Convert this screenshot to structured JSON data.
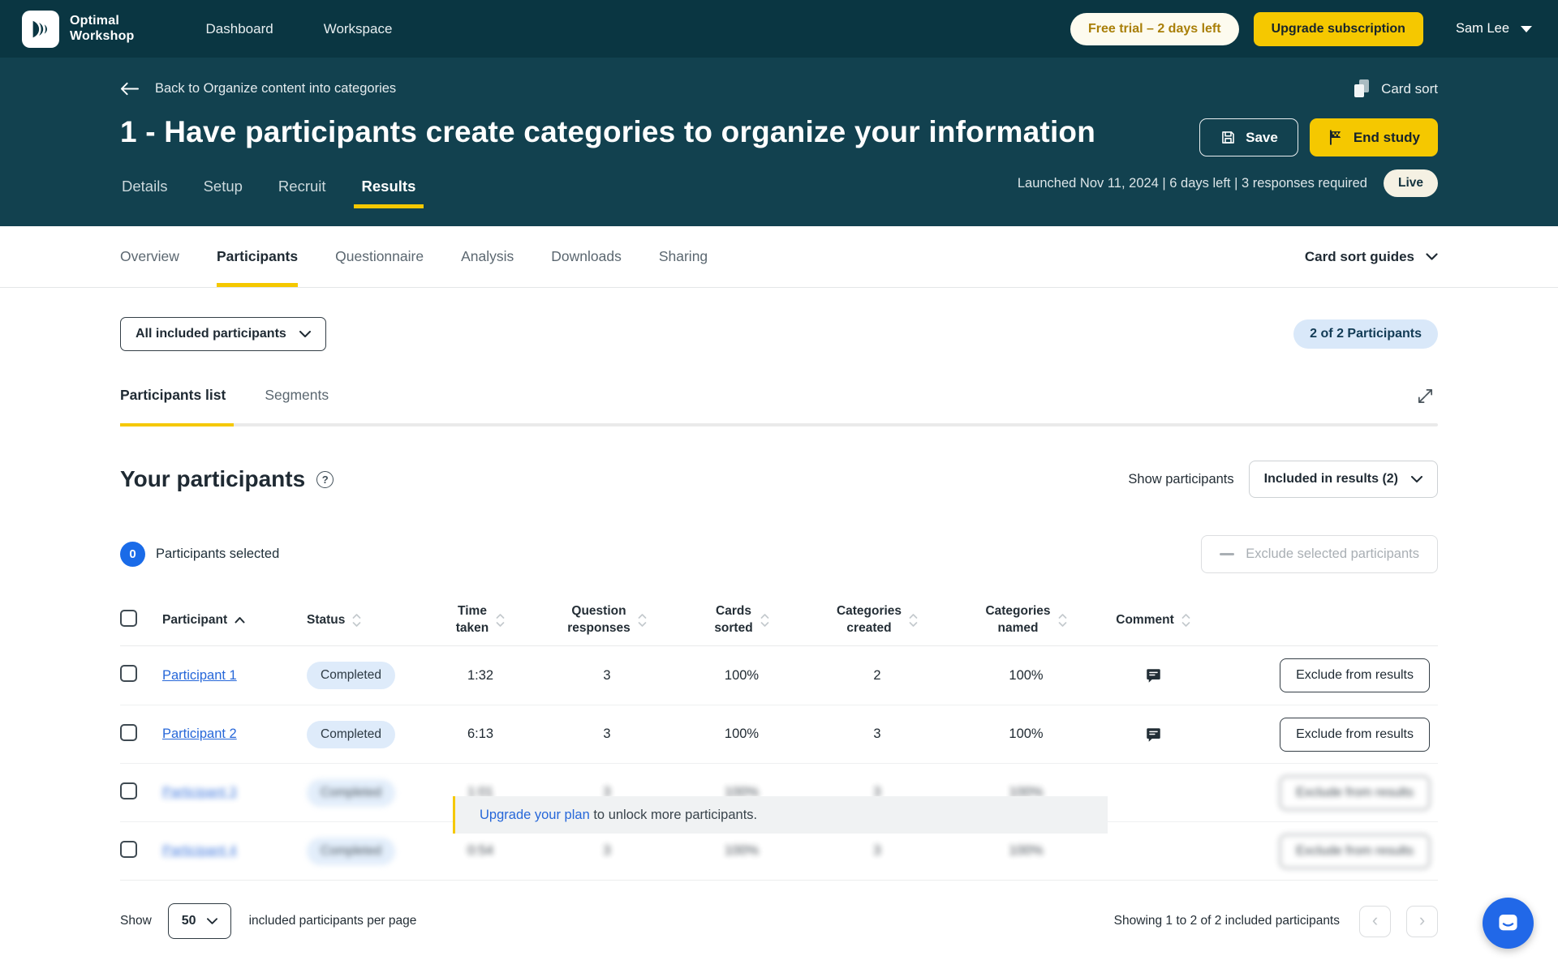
{
  "colors": {
    "navbar_bg": "#0A3642",
    "header_bg": "#12414F",
    "accent_yellow": "#F5C800",
    "trial_bg": "#FDFBEF",
    "trial_text": "#A97F08",
    "link_blue": "#2667D9",
    "badge_blue_bg": "#D9E8F9",
    "badge_blue_text": "#123B55",
    "selected_badge_bg": "#1A6BE8",
    "pill_completed_bg": "#DEEBFA",
    "live_bg": "#F5F1E3",
    "text_dark": "#1F2A33",
    "intercom_blue": "#2168E8"
  },
  "navbar": {
    "logo_line1": "Optimal",
    "logo_line2": "Workshop",
    "items": [
      "Dashboard",
      "Workspace"
    ],
    "trial_badge": "Free trial – 2 days left",
    "upgrade_button": "Upgrade subscription",
    "user_name": "Sam Lee"
  },
  "study_header": {
    "back_link": "Back to Organize content into categories",
    "tool_label": "Card sort",
    "title": "1 - Have participants create categories to organize your information",
    "save_button": "Save",
    "end_study_button": "End study",
    "tabs": [
      "Details",
      "Setup",
      "Recruit",
      "Results"
    ],
    "active_tab": "Results",
    "meta": "Launched Nov 11, 2024 | 6 days left | 3 responses required",
    "live_badge": "Live"
  },
  "subnav": {
    "items": [
      "Overview",
      "Participants",
      "Questionnaire",
      "Analysis",
      "Downloads",
      "Sharing"
    ],
    "active": "Participants",
    "guides_dropdown": "Card sort guides"
  },
  "filters": {
    "participants_dropdown": "All included participants",
    "count_badge": "2 of 2 Participants"
  },
  "list_tabs": {
    "items": [
      "Participants list",
      "Segments"
    ],
    "active": "Participants list"
  },
  "participants": {
    "heading": "Your participants",
    "show_label": "Show participants",
    "show_dropdown": "Included in results (2)",
    "selected_count": "0",
    "selected_label": "Participants selected",
    "exclude_button": "Exclude selected participants"
  },
  "table": {
    "columns": [
      "Participant",
      "Status",
      "Time taken",
      "Question responses",
      "Cards sorted",
      "Categories created",
      "Categories named",
      "Comment"
    ],
    "row_action_label": "Exclude from results",
    "rows": [
      {
        "name": "Participant 1",
        "status": "Completed",
        "time": "1:32",
        "responses": "3",
        "cards_sorted": "100%",
        "categories_created": "2",
        "categories_named": "100%",
        "has_comment": true,
        "locked": false
      },
      {
        "name": "Participant 2",
        "status": "Completed",
        "time": "6:13",
        "responses": "3",
        "cards_sorted": "100%",
        "categories_created": "3",
        "categories_named": "100%",
        "has_comment": true,
        "locked": false
      },
      {
        "name": "Participant 3",
        "status": "Completed",
        "time": "1:01",
        "responses": "3",
        "cards_sorted": "100%",
        "categories_created": "3",
        "categories_named": "100%",
        "has_comment": false,
        "locked": true
      },
      {
        "name": "Participant 4",
        "status": "Completed",
        "time": "0:54",
        "responses": "3",
        "cards_sorted": "100%",
        "categories_created": "3",
        "categories_named": "100%",
        "has_comment": false,
        "locked": true
      }
    ],
    "upgrade_banner": {
      "link": "Upgrade your plan",
      "text": " to unlock more participants."
    }
  },
  "footer": {
    "show_label": "Show",
    "page_size": "50",
    "per_page_label": "included participants per page",
    "showing_text": "Showing 1 to 2 of 2 included participants",
    "prev": "‹",
    "next": "›"
  }
}
